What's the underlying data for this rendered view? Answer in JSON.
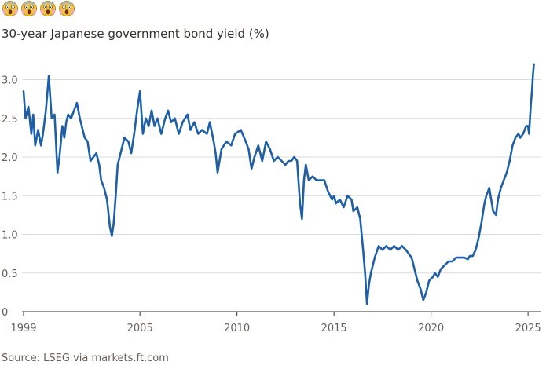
{
  "header": {
    "emojis": [
      "screaming-face-icon",
      "screaming-face-icon",
      "screaming-face-icon",
      "screaming-face-icon"
    ],
    "title": "30-year Japanese government bond yield (%)"
  },
  "footer": {
    "source": "Source: LSEG via markets.ft.com"
  },
  "colors": {
    "line": "#1f5fa6",
    "grid": "#dcdcdc",
    "baseline": "#33302e",
    "text": "#66605c"
  },
  "chart_data": {
    "type": "line",
    "title": "30-year Japanese government bond yield (%)",
    "xlabel": "",
    "ylabel": "",
    "xlim": [
      1999.0,
      2025.4
    ],
    "ylim": [
      0,
      3.3
    ],
    "x_ticks": [
      1999,
      2005,
      2010,
      2015,
      2020,
      2025
    ],
    "x_tick_labels": [
      "1999",
      "2005",
      "2010",
      "2015",
      "2020",
      "2025"
    ],
    "y_ticks": [
      0,
      0.5,
      1.0,
      1.5,
      2.0,
      2.5,
      3.0
    ],
    "y_tick_labels": [
      "0",
      "0.5",
      "1.0",
      "1.5",
      "2.0",
      "2.5",
      "3.0"
    ],
    "grid": true,
    "legend": "none",
    "series": [
      {
        "name": "",
        "x": [
          1999.0,
          1999.1,
          1999.25,
          1999.4,
          1999.5,
          1999.6,
          1999.75,
          1999.9,
          2000.0,
          2000.15,
          2000.3,
          2000.45,
          2000.6,
          2000.75,
          2000.85,
          2001.0,
          2001.1,
          2001.2,
          2001.3,
          2001.45,
          2001.6,
          2001.75,
          2001.9,
          2002.0,
          2002.15,
          2002.3,
          2002.45,
          2002.6,
          2002.75,
          2002.9,
          2003.0,
          2003.15,
          2003.3,
          2003.45,
          2003.55,
          2003.65,
          2003.75,
          2003.85,
          2004.0,
          2004.2,
          2004.4,
          2004.55,
          2004.7,
          2004.85,
          2005.0,
          2005.15,
          2005.3,
          2005.45,
          2005.6,
          2005.75,
          2005.9,
          2006.1,
          2006.3,
          2006.45,
          2006.6,
          2006.8,
          2007.0,
          2007.2,
          2007.45,
          2007.6,
          2007.8,
          2008.0,
          2008.2,
          2008.45,
          2008.6,
          2008.8,
          2008.9,
          2009.0,
          2009.2,
          2009.45,
          2009.7,
          2009.9,
          2010.2,
          2010.45,
          2010.6,
          2010.75,
          2010.9,
          2011.1,
          2011.3,
          2011.5,
          2011.7,
          2011.9,
          2012.1,
          2012.3,
          2012.5,
          2012.65,
          2012.8,
          2012.95,
          2013.1,
          2013.25,
          2013.35,
          2013.45,
          2013.55,
          2013.7,
          2013.9,
          2014.1,
          2014.3,
          2014.5,
          2014.7,
          2014.9,
          2015.0,
          2015.1,
          2015.3,
          2015.5,
          2015.7,
          2015.9,
          2016.0,
          2016.2,
          2016.35,
          2016.5,
          2016.6,
          2016.7,
          2016.8,
          2016.9,
          2017.1,
          2017.3,
          2017.5,
          2017.7,
          2017.9,
          2018.1,
          2018.3,
          2018.5,
          2018.7,
          2018.85,
          2019.0,
          2019.15,
          2019.3,
          2019.45,
          2019.6,
          2019.75,
          2019.9,
          2020.1,
          2020.2,
          2020.35,
          2020.5,
          2020.7,
          2020.9,
          2021.1,
          2021.3,
          2021.5,
          2021.7,
          2021.9,
          2022.0,
          2022.15,
          2022.3,
          2022.45,
          2022.6,
          2022.75,
          2022.85,
          2023.0,
          2023.1,
          2023.2,
          2023.35,
          2023.45,
          2023.6,
          2023.75,
          2023.9,
          2024.05,
          2024.2,
          2024.35,
          2024.5,
          2024.6,
          2024.75,
          2024.9,
          2025.0,
          2025.05,
          2025.1,
          2025.15,
          2025.2,
          2025.25,
          2025.3
        ],
        "y": [
          2.85,
          2.5,
          2.65,
          2.3,
          2.55,
          2.15,
          2.35,
          2.15,
          2.3,
          2.6,
          3.05,
          2.5,
          2.55,
          1.8,
          2.0,
          2.4,
          2.25,
          2.45,
          2.55,
          2.5,
          2.6,
          2.7,
          2.5,
          2.4,
          2.25,
          2.2,
          1.95,
          2.0,
          2.05,
          1.9,
          1.7,
          1.6,
          1.45,
          1.1,
          0.98,
          1.15,
          1.5,
          1.9,
          2.05,
          2.25,
          2.2,
          2.05,
          2.3,
          2.6,
          2.85,
          2.3,
          2.5,
          2.4,
          2.6,
          2.4,
          2.5,
          2.3,
          2.5,
          2.6,
          2.45,
          2.5,
          2.3,
          2.45,
          2.55,
          2.35,
          2.45,
          2.3,
          2.35,
          2.3,
          2.45,
          2.2,
          2.05,
          1.8,
          2.1,
          2.2,
          2.15,
          2.3,
          2.35,
          2.2,
          2.1,
          1.85,
          2.0,
          2.15,
          1.95,
          2.2,
          2.1,
          1.95,
          2.0,
          1.95,
          1.9,
          1.95,
          1.95,
          2.0,
          1.95,
          1.4,
          1.2,
          1.7,
          1.9,
          1.7,
          1.75,
          1.7,
          1.7,
          1.7,
          1.55,
          1.45,
          1.5,
          1.4,
          1.45,
          1.35,
          1.5,
          1.45,
          1.3,
          1.35,
          1.2,
          0.8,
          0.5,
          0.1,
          0.35,
          0.5,
          0.7,
          0.85,
          0.8,
          0.85,
          0.8,
          0.85,
          0.8,
          0.85,
          0.8,
          0.75,
          0.7,
          0.55,
          0.4,
          0.3,
          0.15,
          0.25,
          0.4,
          0.45,
          0.5,
          0.45,
          0.55,
          0.6,
          0.65,
          0.65,
          0.7,
          0.7,
          0.7,
          0.68,
          0.72,
          0.72,
          0.8,
          0.95,
          1.15,
          1.4,
          1.5,
          1.6,
          1.45,
          1.3,
          1.25,
          1.45,
          1.6,
          1.7,
          1.8,
          1.95,
          2.15,
          2.25,
          2.3,
          2.25,
          2.3,
          2.4,
          2.4,
          2.3,
          2.5,
          2.7,
          2.85,
          3.05,
          3.2
        ]
      }
    ]
  }
}
